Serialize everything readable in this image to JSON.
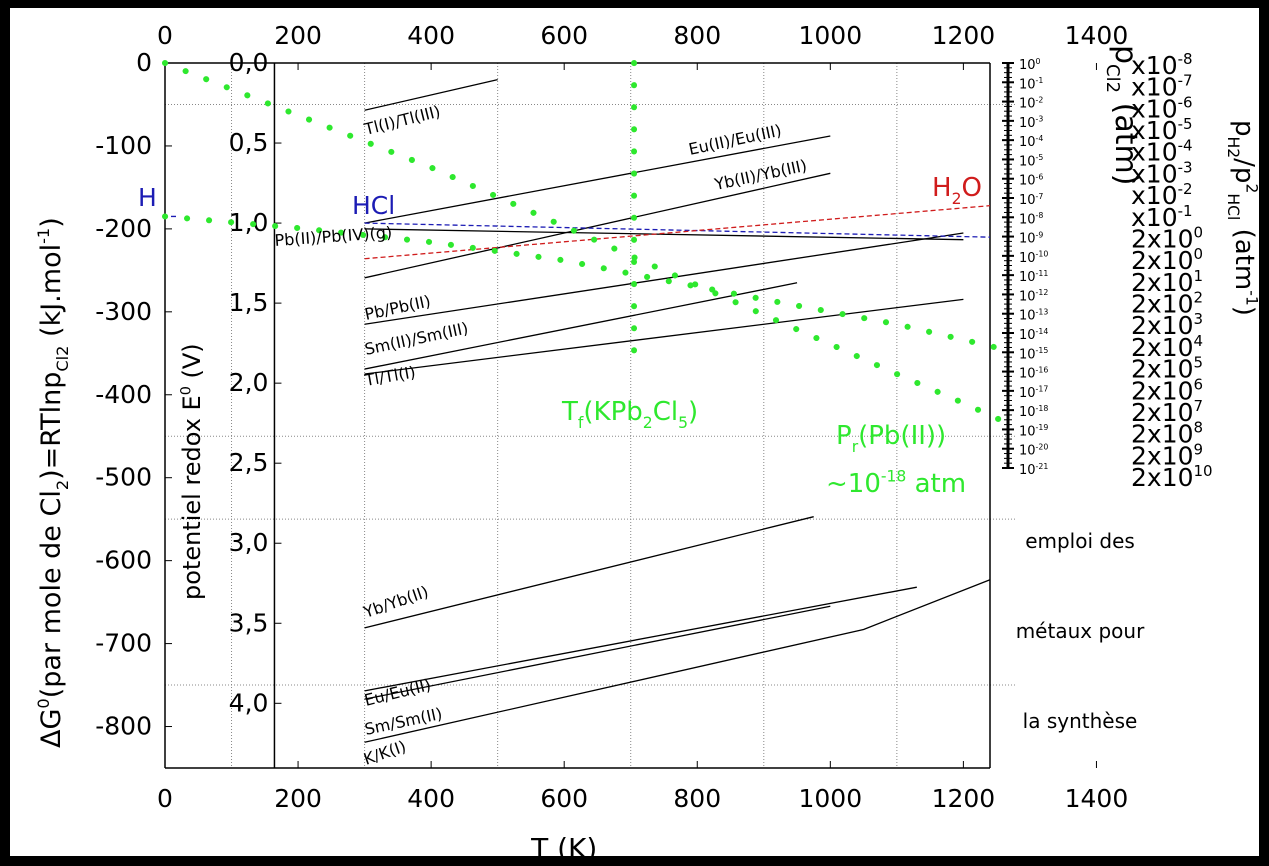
{
  "chart_data": {
    "type": "line",
    "xlabel": "T (K)",
    "ylabel_left_parts": [
      "ΔG",
      "0",
      "(par mole de Cl",
      "2",
      ")=RTlnp",
      "Cl",
      "2",
      " (kJ.mol",
      "-1",
      ")"
    ],
    "ylabel_potential_parts": [
      "potentiel redox E",
      "0",
      " (V)"
    ],
    "ylabel_pcl2_parts": [
      "p",
      "Cl",
      "2",
      " (atm)"
    ],
    "ylabel_ratio_parts": [
      "p",
      "H",
      "2",
      "/p",
      "2",
      "HCl",
      " (atm",
      "-1",
      ")"
    ],
    "xlim": [
      0,
      1240
    ],
    "ylim": [
      -850,
      0
    ],
    "x_ticks": [
      "0",
      "200",
      "400",
      "600",
      "800",
      "1000",
      "1200",
      "1400"
    ],
    "x_tick_values": [
      0,
      200,
      400,
      600,
      800,
      1000,
      1200,
      1400
    ],
    "y_ticks": [
      "0",
      "-100",
      "-200",
      "-300",
      "-400",
      "-500",
      "-600",
      "-700",
      "-800"
    ],
    "y_tick_values": [
      0,
      -100,
      -200,
      -300,
      -400,
      -500,
      -600,
      -700,
      -800
    ],
    "e_ticks": [
      "0,0",
      "0,5",
      "1,0",
      "1,5",
      "2,0",
      "2,5",
      "3,0",
      "3,5",
      "4,0"
    ],
    "e_tick_values": [
      0,
      0.5,
      1.0,
      1.5,
      2.0,
      2.5,
      3.0,
      3.5,
      4.0
    ],
    "e_axis_x_value": 160,
    "pcl2_mantissa": "10",
    "pcl2_exponents": [
      "0",
      "-1",
      "-2",
      "-3",
      "-4",
      "-5",
      "-6",
      "-7",
      "-8",
      "-9",
      "-10",
      "-11",
      "-12",
      "-13",
      "-14",
      "-15",
      "-16",
      "-17",
      "-18",
      "-19",
      "-20",
      "-21"
    ],
    "ratio_mantissas_x": [
      "x10",
      "x10",
      "x10",
      "x10",
      "x10",
      "x10",
      "x10",
      "x10"
    ],
    "ratio_exponents_x": [
      "-8",
      "-7",
      "-6",
      "-5",
      "-4",
      "-3",
      "-2",
      "-1"
    ],
    "ratio_mantissas_2x": [
      "2x10",
      "2x10",
      "2x10",
      "2x10",
      "2x10",
      "2x10",
      "2x10",
      "2x10",
      "2x10",
      "2x10",
      "2x10",
      "2x10"
    ],
    "ratio_exponents_2x": [
      "0",
      "0",
      "1",
      "2",
      "3",
      "4",
      "5",
      "6",
      "7",
      "8",
      "9",
      "10"
    ],
    "gridlines_x": [
      100,
      300,
      500,
      700,
      900,
      1100
    ],
    "gridlines_y": [
      -50,
      -450,
      -550,
      -750
    ],
    "couples": [
      {
        "name": "Tl(I)/Tl(III)",
        "x": [
          300,
          500
        ],
        "y": [
          -57,
          -20
        ]
      },
      {
        "name": "Eu(II)/Eu(III)",
        "x": [
          300,
          1000
        ],
        "y": [
          -193,
          -88
        ]
      },
      {
        "name": "Yb(II)/Yb(III)",
        "x": [
          300,
          1000
        ],
        "y": [
          -259,
          -133
        ]
      },
      {
        "name": "Pb(II)/Pb(IV)(g)",
        "x": [
          300,
          1200
        ],
        "y": [
          -200,
          -213
        ]
      },
      {
        "name": "Pb/Pb(II)",
        "x": [
          300,
          1200
        ],
        "y": [
          -315,
          -205
        ]
      },
      {
        "name": "Sm(II)/Sm(III)",
        "x": [
          300,
          950
        ],
        "y": [
          -369,
          -265
        ]
      },
      {
        "name": "Tl/Tl(I)",
        "x": [
          300,
          1200
        ],
        "y": [
          -375,
          -285
        ]
      },
      {
        "name": "Yb/Yb(II)",
        "x": [
          300,
          975
        ],
        "y": [
          -681,
          -547
        ]
      },
      {
        "name": "Eu/Eu(II)",
        "x": [
          300,
          1130
        ],
        "y": [
          -757,
          -632
        ]
      },
      {
        "name": "Sm/Sm(II)",
        "x": [
          300,
          1000
        ],
        "y": [
          -767,
          -655
        ]
      },
      {
        "name": "K/K(I)",
        "x": [
          300,
          1050,
          1240
        ],
        "y": [
          -819,
          -683,
          -623
        ]
      }
    ],
    "hcl_line": {
      "label": "HCl",
      "x": [
        300,
        1240
      ],
      "y": [
        -193,
        -210
      ]
    },
    "h2o_line": {
      "label_parts": [
        "H",
        "2",
        "O"
      ],
      "x": [
        300,
        1240
      ],
      "y": [
        -236,
        -172
      ]
    },
    "h_label": "H",
    "green_curves": [
      {
        "x": [
          0,
          200,
          400,
          600,
          800,
          1000,
          1100,
          1200,
          1260
        ],
        "y": [
          0,
          -63,
          -126,
          -197,
          -268,
          -339,
          -375,
          -410,
          -432
        ]
      },
      {
        "x": [
          0,
          200,
          400,
          600,
          750,
          900,
          1100,
          1260
        ],
        "y": [
          -185,
          -199,
          -216,
          -238,
          -262,
          -285,
          -315,
          -345
        ]
      },
      {
        "x": [
          705,
          705
        ],
        "y": [
          0,
          -365
        ]
      }
    ],
    "tf_label_parts": [
      "T",
      "f",
      "(KPb",
      "2",
      "Cl",
      "5",
      ")"
    ],
    "pr_label_parts": [
      "P",
      "r",
      "(Pb(II))"
    ],
    "pr_value_parts": [
      "~10",
      "-18",
      " atm"
    ],
    "side_notes": [
      "emploi des",
      "métaux pour",
      "la synthèse"
    ],
    "colors": {
      "green": "#2ee82e",
      "blue": "#1c1cb4",
      "red": "#d01c1c",
      "line": "#000000",
      "grid": "#888888"
    }
  }
}
